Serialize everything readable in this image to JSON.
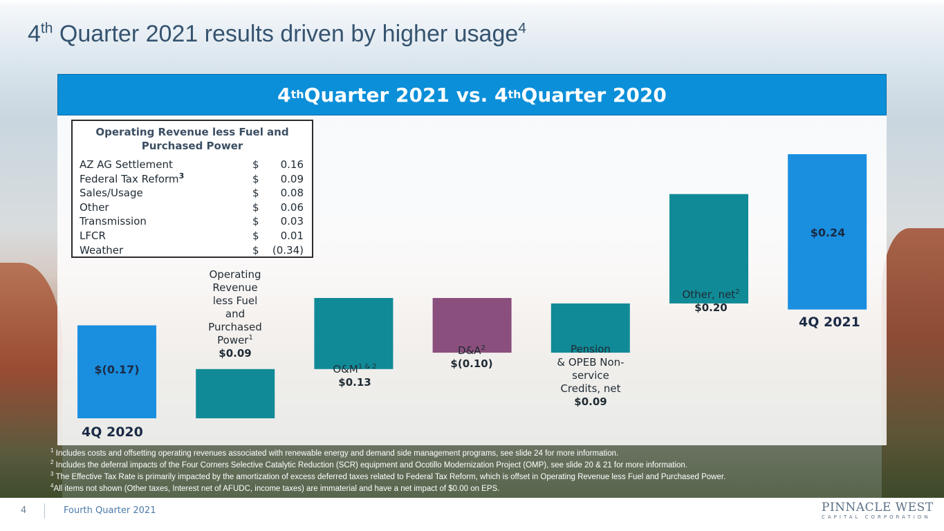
{
  "slide": {
    "title": "4th Quarter 2021 results driven by higher usage",
    "title_parts": {
      "pre": "4",
      "sup1": "th",
      "mid": " Quarter 2021 results driven by higher usage",
      "sup2": "4"
    }
  },
  "banner": {
    "pre": "4",
    "sup1": "th",
    "mid": " Quarter 2021 vs. 4",
    "sup2": "th",
    "post": " Quarter 2020"
  },
  "revenue_box": {
    "title": "Operating Revenue less Fuel and Purchased Power",
    "rows": [
      {
        "label": "AZ AG Settlement",
        "sup": "",
        "currency": "$",
        "value": "0.16"
      },
      {
        "label": "Federal Tax Reform",
        "sup": "3",
        "currency": "$",
        "value": "0.09"
      },
      {
        "label": "Sales/Usage",
        "sup": "",
        "currency": "$",
        "value": "0.08"
      },
      {
        "label": "Other",
        "sup": "",
        "currency": "$",
        "value": "0.06"
      },
      {
        "label": "Transmission",
        "sup": "",
        "currency": "$",
        "value": "0.03"
      },
      {
        "label": "LFCR",
        "sup": "",
        "currency": "$",
        "value": "0.01"
      },
      {
        "label": "Weather",
        "sup": "",
        "currency": "$",
        "value": "(0.34)"
      }
    ]
  },
  "chart_data": {
    "type": "bar",
    "subtype": "waterfall",
    "title": "4th Quarter 2021 vs. 4th Quarter 2020",
    "categories": [
      "4Q 2020",
      "Operating Revenue less Fuel and Purchased Power",
      "O&M",
      "D&A",
      "Pension & OPEB Non-service Credits, net",
      "Other, net",
      "4Q 2021"
    ],
    "values": [
      -0.17,
      0.09,
      0.13,
      -0.1,
      0.09,
      0.2,
      0.24
    ],
    "value_labels": [
      "$(0.17)",
      "$0.09",
      "$0.13",
      "$(0.10)",
      "$0.09",
      "$0.20",
      "$0.24"
    ],
    "bar_kinds": [
      "total",
      "increase",
      "increase",
      "decrease",
      "increase",
      "increase",
      "total"
    ],
    "colors": {
      "total": "#1a8fe0",
      "increase": "#118a97",
      "decrease": "#8a4f7d"
    }
  },
  "labels": {
    "start_caption": "4Q 2020",
    "end_caption": "4Q 2021",
    "start_value": "$(0.17)",
    "end_value": "$0.24",
    "oprev": {
      "lines": [
        "Operating",
        "Revenue",
        "less Fuel",
        "and",
        "Purchased"
      ],
      "last": "Power",
      "sup": "1",
      "value": "$0.09"
    },
    "om": {
      "text": "O&M",
      "sup": "1 & 2",
      "value": "$0.13"
    },
    "da": {
      "text": "D&A",
      "sup": "2",
      "value": "$(0.10)"
    },
    "pension": {
      "lines": [
        "Pension",
        "& OPEB Non-",
        "service",
        "Credits, net"
      ],
      "value": "$0.09"
    },
    "other": {
      "text": "Other, net",
      "sup": "2",
      "value": "$0.20"
    }
  },
  "footnotes": [
    {
      "num": "1",
      "text": " Includes costs and offsetting operating revenues associated with renewable energy and demand side management programs, see slide 24 for more information."
    },
    {
      "num": "2",
      "text": " Includes the deferral impacts of the Four Corners Selective Catalytic Reduction (SCR) equipment and Ocotillo Modernization Project (OMP), see slide 20 & 21 for more information."
    },
    {
      "num": "3",
      "text": " The Effective Tax Rate is primarily impacted by the amortization of excess deferred taxes related to Federal Tax Reform, which is offset in Operating Revenue less Fuel and Purchased Power."
    },
    {
      "num": "4",
      "text": "All items not shown (Other taxes, Interest net of AFUDC, income taxes) are immaterial and have a net impact of $0.00 on EPS."
    }
  ],
  "footer": {
    "page": "4",
    "text": "Fourth Quarter 2021",
    "logo_main": "PINNACLE WEST",
    "logo_sub": "CAPITAL CORPORATION"
  }
}
